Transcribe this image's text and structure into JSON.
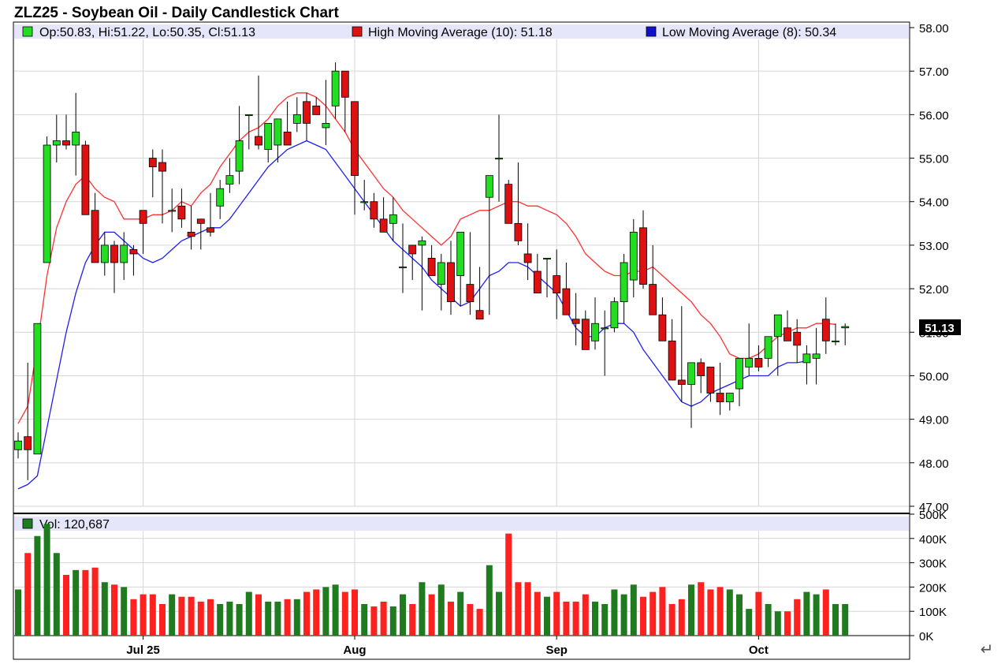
{
  "title": "ZLZ25 - Soybean Oil - Daily Candlestick Chart",
  "legend": {
    "ohlc_text": "Op:50.83, Hi:51.22, Lo:50.35, Cl:51.13",
    "high_ma_text": "High Moving Average (10): 51.18",
    "low_ma_text": "Low Moving Average (8): 50.34",
    "vol_text": "Vol: 120,687"
  },
  "last_price_label": "51.13",
  "return_symbol": "↵",
  "colors": {
    "up": "#22dd22",
    "down": "#dd1111",
    "high_ma": "#ff3030",
    "low_ma": "#2020ee",
    "vol_up": "#207a20",
    "vol_down": "#ff2020",
    "legend_bg": "#e6e6fa"
  },
  "chart_data": [
    {
      "type": "candlestick",
      "title": "ZLZ25 - Soybean Oil - Daily Candlestick Chart",
      "ylim": [
        47,
        58
      ],
      "yticks": [
        "47.00",
        "48.00",
        "49.00",
        "50.00",
        "51.00",
        "52.00",
        "53.00",
        "54.00",
        "55.00",
        "56.00",
        "57.00",
        "58.00"
      ],
      "xticks": [
        {
          "label": "Jul 25",
          "index": 13
        },
        {
          "label": "Aug",
          "index": 35
        },
        {
          "label": "Sep",
          "index": 56
        },
        {
          "label": "Oct",
          "index": 77
        }
      ],
      "series": [
        {
          "name": "Open",
          "values": [
            48.3,
            48.6,
            48.2,
            52.6,
            55.3,
            55.4,
            55.3,
            55.3,
            53.8,
            52.6,
            53.0,
            52.6,
            52.9,
            53.8,
            55.0,
            54.9,
            53.8,
            53.9,
            53.3,
            53.6,
            53.4,
            53.9,
            54.4,
            54.7,
            56.0,
            55.5,
            55.2,
            55.3,
            55.6,
            55.8,
            56.3,
            56.2,
            55.7,
            56.2,
            57.0,
            56.3,
            54.0,
            54.0,
            53.6,
            53.5,
            52.5,
            53.0,
            53.0,
            52.7,
            52.1,
            52.6,
            52.3,
            52.1,
            51.5,
            54.1,
            55.0,
            54.4,
            53.5,
            52.8,
            52.4,
            52.7,
            52.3,
            52.0,
            51.3,
            51.3,
            50.8,
            51.1,
            51.1,
            51.7,
            52.2,
            53.4,
            52.1,
            51.4,
            50.8,
            49.9,
            49.8,
            50.3,
            50.2,
            49.6,
            49.4,
            49.7,
            50.2,
            50.4,
            50.4,
            50.9,
            51.1,
            51.0,
            50.3,
            50.4,
            51.3,
            50.8,
            51.1
          ]
        },
        {
          "name": "High",
          "values": [
            48.7,
            50.3,
            51.2,
            55.5,
            56.0,
            56.0,
            56.5,
            55.4,
            54.2,
            53.3,
            53.1,
            53.3,
            53.0,
            53.7,
            55.2,
            55.2,
            54.3,
            54.3,
            53.9,
            53.5,
            54.2,
            54.5,
            55.0,
            56.2,
            56.0,
            56.9,
            55.6,
            55.8,
            56.3,
            56.4,
            56.5,
            56.4,
            56.8,
            57.2,
            56.8,
            55.0,
            54.5,
            54.2,
            54.1,
            54.1,
            53.5,
            53.0,
            53.2,
            53.0,
            52.8,
            53.1,
            53.3,
            53.3,
            52.5,
            54.3,
            56.0,
            54.5,
            54.9,
            53.5,
            52.8,
            52.7,
            52.9,
            52.6,
            51.9,
            51.5,
            51.8,
            51.5,
            51.8,
            52.8,
            53.6,
            53.8,
            53.0,
            51.8,
            51.3,
            51.6,
            49.9,
            50.4,
            50.2,
            50.3,
            49.5,
            50.4,
            51.2,
            50.7,
            50.6,
            51.4,
            51.5,
            51.3,
            50.7,
            51.1,
            51.8,
            51.2,
            51.2
          ]
        },
        {
          "name": "Low",
          "values": [
            48.1,
            47.6,
            48.3,
            52.6,
            54.9,
            55.2,
            54.6,
            54.2,
            52.6,
            52.3,
            51.9,
            52.2,
            52.3,
            52.8,
            54.1,
            53.5,
            53.3,
            53.4,
            52.9,
            52.9,
            53.2,
            53.6,
            54.2,
            54.4,
            55.2,
            55.2,
            54.9,
            54.9,
            55.3,
            55.6,
            55.4,
            56.0,
            55.3,
            55.9,
            55.6,
            53.7,
            53.8,
            53.4,
            53.3,
            53.1,
            51.9,
            52.2,
            51.5,
            52.4,
            51.5,
            51.4,
            51.6,
            51.4,
            51.3,
            51.4,
            54.0,
            53.6,
            53.0,
            52.2,
            52.0,
            51.8,
            51.3,
            51.5,
            50.7,
            50.6,
            50.6,
            50.0,
            51.0,
            51.2,
            51.8,
            52.0,
            51.4,
            50.9,
            50.2,
            49.4,
            48.8,
            49.6,
            49.4,
            49.1,
            49.2,
            49.3,
            50.0,
            50.1,
            50.2,
            50.0,
            50.9,
            50.3,
            49.8,
            49.8,
            50.5,
            50.7,
            50.7
          ]
        },
        {
          "name": "Close",
          "values": [
            48.5,
            48.3,
            51.2,
            55.3,
            55.4,
            55.3,
            55.6,
            53.7,
            52.6,
            53.0,
            52.6,
            53.0,
            52.8,
            53.5,
            54.8,
            54.7,
            53.8,
            53.6,
            53.2,
            53.5,
            53.3,
            54.3,
            54.6,
            55.4,
            56.0,
            55.3,
            55.8,
            55.9,
            55.3,
            56.0,
            55.8,
            56.0,
            55.8,
            57.0,
            56.4,
            54.6,
            54.0,
            53.6,
            53.3,
            53.7,
            52.5,
            52.8,
            53.1,
            52.3,
            52.6,
            51.7,
            53.3,
            51.7,
            51.3,
            54.6,
            55.0,
            53.5,
            53.1,
            52.6,
            51.9,
            52.7,
            51.9,
            51.4,
            51.2,
            50.6,
            51.2,
            51.1,
            51.7,
            52.6,
            53.3,
            52.1,
            51.4,
            50.8,
            49.9,
            49.8,
            50.3,
            50.0,
            49.6,
            49.4,
            49.6,
            50.4,
            50.4,
            50.2,
            50.9,
            51.4,
            50.8,
            50.7,
            50.5,
            50.5,
            50.8,
            50.8,
            51.13
          ]
        },
        {
          "name": "High Moving Average (10)",
          "values": [
            48.9,
            49.3,
            50.7,
            52.3,
            53.4,
            54.0,
            54.4,
            54.6,
            54.3,
            54.1,
            54.0,
            53.6,
            53.6,
            53.6,
            53.7,
            53.7,
            53.8,
            54.0,
            53.9,
            54.2,
            54.4,
            54.8,
            55.1,
            55.4,
            55.6,
            55.7,
            55.9,
            56.2,
            56.4,
            56.5,
            56.5,
            56.4,
            56.2,
            55.9,
            55.6,
            55.2,
            54.9,
            54.6,
            54.3,
            54.1,
            53.8,
            53.6,
            53.4,
            53.2,
            53.0,
            53.2,
            53.6,
            53.7,
            53.8,
            53.8,
            53.9,
            54.0,
            54.0,
            53.9,
            53.9,
            53.8,
            53.7,
            53.5,
            53.2,
            52.8,
            52.6,
            52.4,
            52.3,
            52.3,
            52.4,
            52.4,
            52.5,
            52.3,
            52.1,
            51.9,
            51.7,
            51.4,
            51.2,
            50.9,
            50.5,
            50.4,
            50.4,
            50.5,
            50.7,
            50.9,
            51.0,
            51.1,
            51.1,
            51.2,
            51.2,
            51.18
          ]
        },
        {
          "name": "Low Moving Average (8)",
          "values": [
            47.4,
            47.5,
            47.7,
            48.8,
            49.9,
            51.0,
            51.9,
            52.6,
            53.0,
            53.3,
            53.3,
            53.1,
            52.9,
            52.7,
            52.6,
            52.7,
            52.9,
            53.1,
            53.2,
            53.3,
            53.4,
            53.4,
            53.6,
            53.9,
            54.2,
            54.5,
            54.8,
            55.0,
            55.2,
            55.3,
            55.4,
            55.3,
            55.2,
            54.9,
            54.6,
            54.3,
            54.0,
            53.7,
            53.4,
            53.1,
            52.9,
            52.7,
            52.5,
            52.2,
            52.0,
            51.8,
            51.6,
            51.7,
            52.0,
            52.3,
            52.4,
            52.6,
            52.6,
            52.5,
            52.3,
            52.1,
            51.9,
            51.5,
            51.1,
            50.9,
            50.9,
            51.1,
            51.2,
            51.2,
            51.0,
            50.6,
            50.3,
            50.0,
            49.7,
            49.4,
            49.3,
            49.4,
            49.6,
            49.7,
            49.8,
            49.9,
            50.0,
            50.0,
            50.0,
            50.2,
            50.3,
            50.3,
            50.34
          ]
        }
      ]
    },
    {
      "type": "bar",
      "title": "Vol: 120,687",
      "ylim": [
        0,
        500000
      ],
      "yticks": [
        "0K",
        "100K",
        "200K",
        "300K",
        "400K",
        "500K"
      ],
      "values": [
        190000,
        340000,
        410000,
        460000,
        340000,
        250000,
        270000,
        270000,
        280000,
        220000,
        210000,
        200000,
        150000,
        170000,
        170000,
        130000,
        170000,
        160000,
        160000,
        140000,
        150000,
        130000,
        140000,
        130000,
        180000,
        170000,
        140000,
        140000,
        150000,
        150000,
        180000,
        190000,
        200000,
        210000,
        180000,
        190000,
        130000,
        120000,
        140000,
        120000,
        170000,
        130000,
        220000,
        170000,
        210000,
        140000,
        180000,
        130000,
        110000,
        290000,
        180000,
        420000,
        220000,
        220000,
        180000,
        160000,
        180000,
        140000,
        140000,
        170000,
        140000,
        130000,
        190000,
        170000,
        210000,
        160000,
        180000,
        200000,
        130000,
        150000,
        210000,
        220000,
        190000,
        200000,
        190000,
        170000,
        110000,
        180000,
        130000,
        100000,
        100000,
        150000,
        180000,
        170000,
        190000,
        130000,
        130000
      ]
    }
  ]
}
